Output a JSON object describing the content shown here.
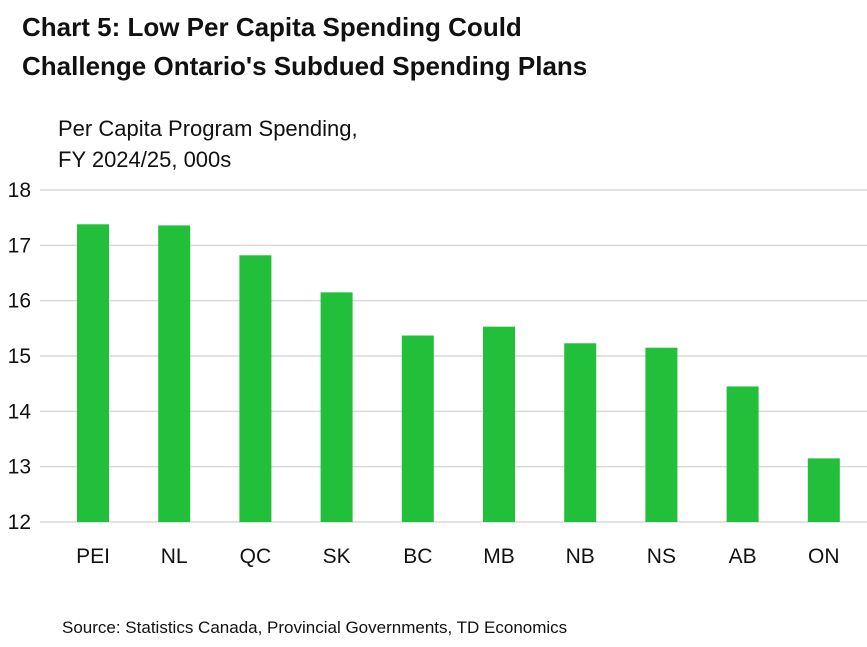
{
  "title_lines": [
    "Chart 5: Low Per Capita Spending Could",
    "Challenge Ontario's Subdued Spending Plans"
  ],
  "y_caption_lines": [
    "Per Capita Program Spending,",
    "FY 2024/25, 000s"
  ],
  "source": "Source: Statistics Canada, Provincial Governments, TD Economics",
  "colors": {
    "bar": "#22bf3a",
    "grid": "#d9d9d9",
    "text": "#111111"
  },
  "chart_data": {
    "type": "bar",
    "title": "Chart 5: Low Per Capita Spending Could Challenge Ontario's Subdued Spending Plans",
    "xlabel": "",
    "ylabel": "Per Capita Program Spending, FY 2024/25, 000s",
    "categories": [
      "PEI",
      "NL",
      "QC",
      "SK",
      "BC",
      "MB",
      "NB",
      "NS",
      "AB",
      "ON"
    ],
    "values": [
      17.38,
      17.36,
      16.82,
      16.15,
      15.37,
      15.53,
      15.23,
      15.15,
      14.45,
      13.15
    ],
    "ylim": [
      12,
      18
    ],
    "yticks": [
      "12",
      "13",
      "14",
      "15",
      "16",
      "17",
      "18"
    ],
    "grid": "horizontal",
    "legend": "none"
  }
}
